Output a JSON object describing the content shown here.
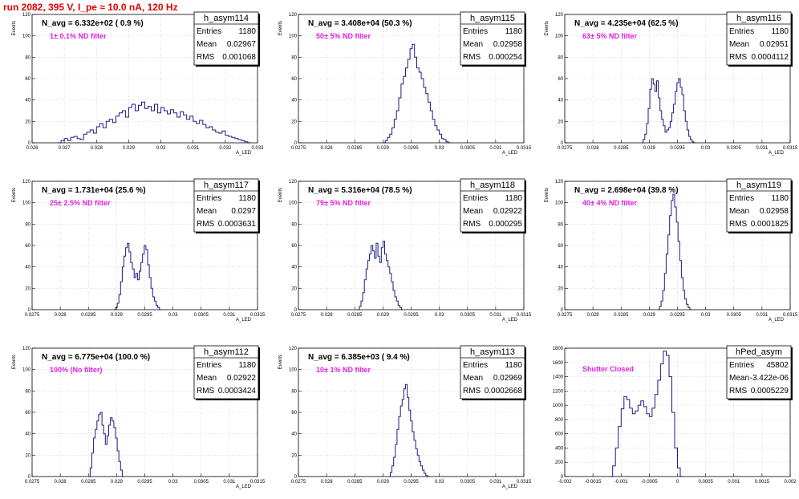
{
  "run_title": "run 2082,   395 V, I_pe ≈ 10.0 nA, 120 Hz",
  "colors": {
    "histogram_line": "#1a1a8a",
    "filter_text": "#e020e0",
    "run_title": "#e00000",
    "grid": "#c8c8c8"
  },
  "chart_data": [
    {
      "type": "histogram",
      "hist_name": "h_asym114",
      "navg_label": "N_avg = 6.332e+02 ( 0.9 %)",
      "filter_label": "1± 0.1% ND filter",
      "stats": [
        {
          "label": "Entries",
          "value": "1180"
        },
        {
          "label": "Mean",
          "value": "0.02967"
        },
        {
          "label": "RMS",
          "value": "0.001068"
        }
      ],
      "ylabel": "Events",
      "xlabel": "A_LED",
      "xlim": [
        0.026,
        0.033
      ],
      "ylim": [
        0,
        120
      ],
      "xticks": [
        0.026,
        0.027,
        0.028,
        0.029,
        0.03,
        0.031,
        0.032,
        0.033
      ],
      "xtick_labels": [
        "0.026",
        "0.027",
        "0.028",
        "0.029",
        "0.03",
        "0.031",
        "0.032",
        "0.033"
      ],
      "yticks": [
        0,
        20,
        40,
        60,
        80,
        100,
        120
      ],
      "ytick_labels": [
        "0",
        "20",
        "40",
        "60",
        "80",
        "100",
        "120"
      ],
      "bins": {
        "start": 0.0268,
        "width": 0.0001,
        "counts": [
          0,
          2,
          4,
          2,
          5,
          6,
          4,
          3,
          8,
          10,
          12,
          9,
          15,
          18,
          14,
          20,
          22,
          19,
          25,
          28,
          30,
          24,
          33,
          36,
          30,
          35,
          38,
          32,
          34,
          30,
          36,
          28,
          33,
          30,
          27,
          31,
          28,
          24,
          29,
          26,
          22,
          25,
          20,
          18,
          21,
          17,
          14,
          15,
          12,
          10,
          9,
          11,
          7,
          6,
          5,
          4,
          3,
          2,
          1,
          0
        ]
      }
    },
    {
      "type": "histogram",
      "hist_name": "h_asym115",
      "navg_label": "N_avg = 3.408e+04 (50.3 %)",
      "filter_label": "50± 5% ND filter",
      "stats": [
        {
          "label": "Entries",
          "value": "1180"
        },
        {
          "label": "Mean",
          "value": "0.02958"
        },
        {
          "label": "RMS",
          "value": "0.000254"
        }
      ],
      "ylabel": "Events",
      "xlabel": "A_LED",
      "xlim": [
        0.0275,
        0.0315
      ],
      "ylim": [
        0,
        120
      ],
      "xticks": [
        0.0275,
        0.028,
        0.0285,
        0.029,
        0.0295,
        0.03,
        0.0305,
        0.031,
        0.0315
      ],
      "xtick_labels": [
        "0.0275",
        "0.028",
        "0.0285",
        "0.029",
        "0.0295",
        "0.03",
        "0.0305",
        "0.031",
        "0.0315"
      ],
      "yticks": [
        0,
        20,
        40,
        60,
        80,
        100,
        120
      ],
      "ytick_labels": [
        "0",
        "20",
        "40",
        "60",
        "80",
        "100",
        "120"
      ],
      "bins": {
        "start": 0.029,
        "width": 4e-05,
        "counts": [
          0,
          2,
          5,
          8,
          14,
          22,
          30,
          42,
          55,
          62,
          70,
          78,
          88,
          92,
          80,
          70,
          66,
          60,
          52,
          46,
          38,
          30,
          22,
          16,
          12,
          8,
          4,
          3,
          1,
          0
        ]
      }
    },
    {
      "type": "histogram",
      "hist_name": "h_asym116",
      "navg_label": "N_avg = 4.235e+04 (62.5 %)",
      "filter_label": "63± 5% ND filter",
      "stats": [
        {
          "label": "Entries",
          "value": "1180"
        },
        {
          "label": "Mean",
          "value": "0.02951"
        },
        {
          "label": "RMS",
          "value": "0.0004112"
        }
      ],
      "ylabel": "Events",
      "xlabel": "A_LED",
      "xlim": [
        0.0275,
        0.0315
      ],
      "ylim": [
        0,
        120
      ],
      "xticks": [
        0.0275,
        0.028,
        0.0285,
        0.029,
        0.0295,
        0.03,
        0.0305,
        0.031,
        0.0315
      ],
      "xtick_labels": [
        "0.0275",
        "0.028",
        "0.0285",
        "0.029",
        "0.0295",
        "0.03",
        "0.0305",
        "0.031",
        "0.0315"
      ],
      "yticks": [
        0,
        20,
        40,
        60,
        80,
        100,
        120
      ],
      "ytick_labels": [
        "0",
        "20",
        "40",
        "60",
        "80",
        "100",
        "120"
      ],
      "bins": {
        "start": 0.02886,
        "width": 3e-05,
        "counts": [
          0,
          3,
          8,
          18,
          32,
          50,
          60,
          55,
          48,
          58,
          42,
          30,
          22,
          16,
          10,
          12,
          14,
          20,
          28,
          36,
          48,
          56,
          60,
          52,
          45,
          30,
          20,
          12,
          6,
          3,
          1,
          0
        ]
      }
    },
    {
      "type": "histogram",
      "hist_name": "h_asym117",
      "navg_label": "N_avg = 1.731e+04 (25.6 %)",
      "filter_label": "25± 2.5% ND filter",
      "stats": [
        {
          "label": "Entries",
          "value": "1180"
        },
        {
          "label": "Mean",
          "value": "0.0297"
        },
        {
          "label": "RMS",
          "value": "0.0003631"
        }
      ],
      "ylabel": "Events",
      "xlabel": "A_LED",
      "xlim": [
        0.0275,
        0.0315
      ],
      "ylim": [
        0,
        120
      ],
      "xticks": [
        0.0275,
        0.028,
        0.0285,
        0.029,
        0.0295,
        0.03,
        0.0305,
        0.031,
        0.0315
      ],
      "xtick_labels": [
        "0.0275",
        "0.028",
        "0.0285",
        "0.029",
        "0.0295",
        "0.03",
        "0.0305",
        "0.031",
        "0.0315"
      ],
      "yticks": [
        0,
        20,
        40,
        60,
        80,
        100,
        120
      ],
      "ytick_labels": [
        "0",
        "20",
        "40",
        "60",
        "80",
        "100",
        "120"
      ],
      "bins": {
        "start": 0.02895,
        "width": 3e-05,
        "counts": [
          0,
          2,
          6,
          14,
          26,
          40,
          50,
          58,
          62,
          54,
          44,
          38,
          30,
          34,
          28,
          36,
          44,
          52,
          60,
          56,
          42,
          30,
          20,
          12,
          8,
          4,
          2,
          0
        ]
      }
    },
    {
      "type": "histogram",
      "hist_name": "h_asym118",
      "navg_label": "N_avg = 5.316e+04 (78.5 %)",
      "filter_label": "79± 5% ND filter",
      "stats": [
        {
          "label": "Entries",
          "value": "1180"
        },
        {
          "label": "Mean",
          "value": "0.02922"
        },
        {
          "label": "RMS",
          "value": "0.000295"
        }
      ],
      "ylabel": "Events",
      "xlabel": "A_LED",
      "xlim": [
        0.0275,
        0.0315
      ],
      "ylim": [
        0,
        120
      ],
      "xticks": [
        0.0275,
        0.028,
        0.0285,
        0.029,
        0.0295,
        0.03,
        0.0305,
        0.031,
        0.0315
      ],
      "xtick_labels": [
        "0.0275",
        "0.028",
        "0.0285",
        "0.029",
        "0.0295",
        "0.03",
        "0.0305",
        "0.031",
        "0.0315"
      ],
      "yticks": [
        0,
        20,
        40,
        60,
        80,
        100,
        120
      ],
      "ytick_labels": [
        "0",
        "20",
        "40",
        "60",
        "80",
        "100",
        "120"
      ],
      "bins": {
        "start": 0.02855,
        "width": 3e-05,
        "counts": [
          0,
          3,
          8,
          16,
          28,
          38,
          46,
          52,
          60,
          55,
          48,
          62,
          50,
          44,
          58,
          64,
          52,
          46,
          40,
          34,
          26,
          18,
          12,
          8,
          4,
          2,
          0
        ]
      }
    },
    {
      "type": "histogram",
      "hist_name": "h_asym119",
      "navg_label": "N_avg = 2.698e+04 (39.8 %)",
      "filter_label": "40± 4% ND filter",
      "stats": [
        {
          "label": "Entries",
          "value": "1180"
        },
        {
          "label": "Mean",
          "value": "0.02958"
        },
        {
          "label": "RMS",
          "value": "0.0001825"
        }
      ],
      "ylabel": "Events",
      "xlabel": "A_LED",
      "xlim": [
        0.0275,
        0.0315
      ],
      "ylim": [
        0,
        120
      ],
      "xticks": [
        0.0275,
        0.028,
        0.0285,
        0.029,
        0.0295,
        0.03,
        0.0305,
        0.031,
        0.0315
      ],
      "xtick_labels": [
        "0.0275",
        "0.028",
        "0.0285",
        "0.029",
        "0.0295",
        "0.03",
        "0.0305",
        "0.031",
        "0.0315"
      ],
      "yticks": [
        0,
        20,
        40,
        60,
        80,
        100,
        120
      ],
      "ytick_labels": [
        "0",
        "20",
        "40",
        "60",
        "80",
        "100",
        "120"
      ],
      "bins": {
        "start": 0.02915,
        "width": 3e-05,
        "counts": [
          0,
          3,
          8,
          18,
          34,
          52,
          70,
          88,
          102,
          108,
          96,
          82,
          64,
          46,
          30,
          18,
          10,
          5,
          2,
          0
        ]
      }
    },
    {
      "type": "histogram",
      "hist_name": "h_asym112",
      "navg_label": "N_avg = 6.775e+04 (100.0 %)",
      "filter_label": "100% (No filter)",
      "stats": [
        {
          "label": "Entries",
          "value": "1180"
        },
        {
          "label": "Mean",
          "value": "0.02922"
        },
        {
          "label": "RMS",
          "value": "0.0003424"
        }
      ],
      "ylabel": "Events",
      "xlabel": "A_LED",
      "xlim": [
        0.0275,
        0.0315
      ],
      "ylim": [
        0,
        120
      ],
      "xticks": [
        0.0275,
        0.028,
        0.0285,
        0.029,
        0.0295,
        0.03,
        0.0305,
        0.031,
        0.0315
      ],
      "xtick_labels": [
        "0.0275",
        "0.028",
        "0.0285",
        "0.029",
        "0.0295",
        "0.03",
        "0.0305",
        "0.031",
        "0.0315"
      ],
      "yticks": [
        0,
        20,
        40,
        60,
        80,
        100,
        120
      ],
      "ytick_labels": [
        "0",
        "20",
        "40",
        "60",
        "80",
        "100",
        "120"
      ],
      "bins": {
        "start": 0.0285,
        "width": 3e-05,
        "counts": [
          0,
          8,
          22,
          36,
          44,
          52,
          58,
          60,
          48,
          40,
          30,
          38,
          48,
          55,
          52,
          46,
          36,
          24,
          14,
          6,
          0
        ]
      }
    },
    {
      "type": "histogram",
      "hist_name": "h_asym113",
      "navg_label": "N_avg = 6.385e+03 ( 9.4 %)",
      "filter_label": "10± 1% ND filter",
      "stats": [
        {
          "label": "Entries",
          "value": "1180"
        },
        {
          "label": "Mean",
          "value": "0.02969"
        },
        {
          "label": "RMS",
          "value": "0.0002668"
        }
      ],
      "ylabel": "Events",
      "xlabel": "A_LED",
      "xlim": [
        0.0275,
        0.0315
      ],
      "ylim": [
        0,
        120
      ],
      "xticks": [
        0.0275,
        0.028,
        0.0285,
        0.029,
        0.0295,
        0.03,
        0.0305,
        0.031,
        0.0315
      ],
      "xtick_labels": [
        "0.0275",
        "0.028",
        "0.0285",
        "0.029",
        "0.0295",
        "0.03",
        "0.0305",
        "0.031",
        "0.0315"
      ],
      "yticks": [
        0,
        20,
        40,
        60,
        80,
        100,
        120
      ],
      "ytick_labels": [
        "0",
        "20",
        "40",
        "60",
        "80",
        "100",
        "120"
      ],
      "bins": {
        "start": 0.0291,
        "width": 3e-05,
        "counts": [
          0,
          4,
          10,
          18,
          30,
          44,
          56,
          66,
          72,
          82,
          86,
          74,
          62,
          52,
          42,
          34,
          26,
          20,
          14,
          10,
          6,
          3,
          1,
          0
        ]
      }
    },
    {
      "type": "histogram",
      "hist_name": "hPed_asym",
      "navg_label": "",
      "filter_label": "Shutter Closed",
      "stats": [
        {
          "label": "Entries",
          "value": "45802"
        },
        {
          "label": "Mean",
          "value": "-3.422e-06"
        },
        {
          "label": "RMS",
          "value": "0.0005229"
        }
      ],
      "ylabel": "",
      "xlabel": "",
      "xlim": [
        -0.002,
        0.002
      ],
      "ylim": [
        0,
        1800
      ],
      "xticks": [
        -0.002,
        -0.0015,
        -0.001,
        -0.0005,
        0,
        0.0005,
        0.001,
        0.0015,
        0.002
      ],
      "xtick_labels": [
        "-0.002",
        "-0.0015",
        "-0.001",
        "-0.0005",
        "0",
        "0.0005",
        "0.001",
        "0.0015",
        "0.002"
      ],
      "yticks": [
        0,
        200,
        400,
        600,
        800,
        1000,
        1200,
        1400,
        1600,
        1800
      ],
      "ytick_labels": [
        "0",
        "200",
        "400",
        "600",
        "800",
        "1000",
        "1200",
        "1400",
        "1600",
        "1800"
      ],
      "bins": {
        "start": -0.0012,
        "width": 5e-05,
        "counts": [
          0,
          150,
          400,
          700,
          950,
          1120,
          1080,
          960,
          880,
          920,
          1000,
          1060,
          980,
          880,
          840,
          960,
          1150,
          1350,
          1580,
          1760,
          1700,
          1400,
          900,
          400,
          120,
          0
        ]
      }
    }
  ]
}
